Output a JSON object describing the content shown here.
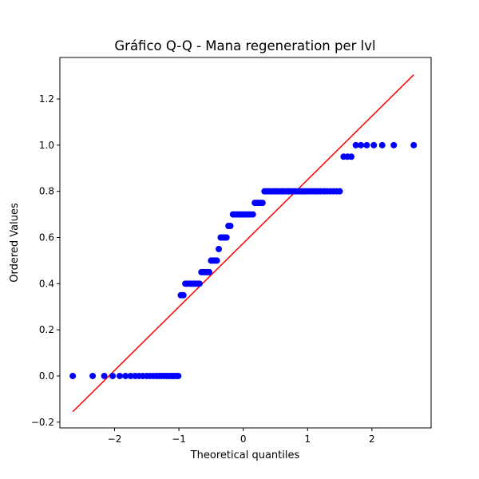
{
  "chart_data": {
    "type": "scatter",
    "title": "Gráfico Q-Q - Mana regeneration per lvl",
    "xlabel": "Theoretical quantiles",
    "ylabel": "Ordered Values",
    "xlim": [
      -2.85,
      2.92
    ],
    "ylim": [
      -0.225,
      1.38
    ],
    "xticks": [
      -2,
      -1,
      0,
      1,
      2
    ],
    "xtick_labels": [
      "−2",
      "−1",
      "0",
      "1",
      "2"
    ],
    "yticks": [
      -0.2,
      0.0,
      0.2,
      0.4,
      0.6,
      0.8,
      1.0,
      1.2
    ],
    "ytick_labels": [
      "−0.2",
      "0.0",
      "0.2",
      "0.4",
      "0.6",
      "0.8",
      "1.0",
      "1.2"
    ],
    "grid": false,
    "colors": {
      "points": "#0000ff",
      "fit_line": "#ff0000"
    },
    "fit_line": {
      "x": [
        -2.65,
        2.65
      ],
      "y": [
        -0.155,
        1.305
      ]
    },
    "series": [
      {
        "points": [
          [
            -2.65,
            0.0
          ],
          [
            -2.34,
            0.0
          ],
          [
            -2.16,
            0.0
          ],
          [
            -2.03,
            0.0
          ],
          [
            -1.92,
            0.0
          ],
          [
            -1.83,
            0.0
          ],
          [
            -1.75,
            0.0
          ],
          [
            -1.68,
            0.0
          ],
          [
            -1.62,
            0.0
          ],
          [
            -1.56,
            0.0
          ],
          [
            -1.5,
            0.0
          ],
          [
            -1.45,
            0.0
          ],
          [
            -1.4,
            0.0
          ],
          [
            -1.35,
            0.0
          ],
          [
            -1.31,
            0.0
          ],
          [
            -1.27,
            0.0
          ],
          [
            -1.23,
            0.0
          ],
          [
            -1.19,
            0.0
          ],
          [
            -1.15,
            0.0
          ],
          [
            -1.11,
            0.0
          ],
          [
            -1.08,
            0.0
          ],
          [
            -1.04,
            0.0
          ],
          [
            -1.01,
            0.0
          ],
          [
            -0.97,
            0.35
          ],
          [
            -0.93,
            0.35
          ],
          [
            -0.9,
            0.4
          ],
          [
            -0.87,
            0.4
          ],
          [
            -0.83,
            0.4
          ],
          [
            -0.8,
            0.4
          ],
          [
            -0.77,
            0.4
          ],
          [
            -0.74,
            0.4
          ],
          [
            -0.71,
            0.4
          ],
          [
            -0.68,
            0.4
          ],
          [
            -0.65,
            0.45
          ],
          [
            -0.62,
            0.45
          ],
          [
            -0.59,
            0.45
          ],
          [
            -0.56,
            0.45
          ],
          [
            -0.53,
            0.45
          ],
          [
            -0.5,
            0.5
          ],
          [
            -0.47,
            0.5
          ],
          [
            -0.44,
            0.5
          ],
          [
            -0.41,
            0.5
          ],
          [
            -0.38,
            0.55
          ],
          [
            -0.35,
            0.6
          ],
          [
            -0.32,
            0.6
          ],
          [
            -0.29,
            0.6
          ],
          [
            -0.26,
            0.6
          ],
          [
            -0.23,
            0.65
          ],
          [
            -0.2,
            0.65
          ],
          [
            -0.16,
            0.7
          ],
          [
            -0.13,
            0.7
          ],
          [
            -0.1,
            0.7
          ],
          [
            -0.07,
            0.7
          ],
          [
            -0.04,
            0.7
          ],
          [
            -0.01,
            0.7
          ],
          [
            0.02,
            0.7
          ],
          [
            0.05,
            0.7
          ],
          [
            0.08,
            0.7
          ],
          [
            0.11,
            0.7
          ],
          [
            0.15,
            0.7
          ],
          [
            0.18,
            0.75
          ],
          [
            0.21,
            0.75
          ],
          [
            0.24,
            0.75
          ],
          [
            0.27,
            0.75
          ],
          [
            0.3,
            0.75
          ],
          [
            0.33,
            0.8
          ],
          [
            0.36,
            0.8
          ],
          [
            0.39,
            0.8
          ],
          [
            0.42,
            0.8
          ],
          [
            0.46,
            0.8
          ],
          [
            0.49,
            0.8
          ],
          [
            0.52,
            0.8
          ],
          [
            0.55,
            0.8
          ],
          [
            0.59,
            0.8
          ],
          [
            0.62,
            0.8
          ],
          [
            0.65,
            0.8
          ],
          [
            0.69,
            0.8
          ],
          [
            0.72,
            0.8
          ],
          [
            0.75,
            0.8
          ],
          [
            0.79,
            0.8
          ],
          [
            0.82,
            0.8
          ],
          [
            0.86,
            0.8
          ],
          [
            0.9,
            0.8
          ],
          [
            0.93,
            0.8
          ],
          [
            0.97,
            0.8
          ],
          [
            1.01,
            0.8
          ],
          [
            1.05,
            0.8
          ],
          [
            1.09,
            0.8
          ],
          [
            1.13,
            0.8
          ],
          [
            1.17,
            0.8
          ],
          [
            1.21,
            0.8
          ],
          [
            1.26,
            0.8
          ],
          [
            1.3,
            0.8
          ],
          [
            1.35,
            0.8
          ],
          [
            1.4,
            0.8
          ],
          [
            1.45,
            0.8
          ],
          [
            1.5,
            0.8
          ],
          [
            1.56,
            0.95
          ],
          [
            1.62,
            0.95
          ],
          [
            1.68,
            0.95
          ],
          [
            1.75,
            1.0
          ],
          [
            1.83,
            1.0
          ],
          [
            1.92,
            1.0
          ],
          [
            2.03,
            1.0
          ],
          [
            2.16,
            1.0
          ],
          [
            2.34,
            1.0
          ],
          [
            2.65,
            1.0
          ]
        ]
      }
    ]
  }
}
